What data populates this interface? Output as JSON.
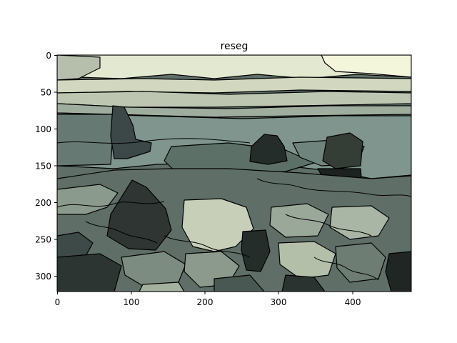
{
  "title": "reseg",
  "axes": {
    "x_ticks": [
      "0",
      "100",
      "200",
      "300",
      "400"
    ],
    "y_ticks": [
      "0",
      "50",
      "100",
      "150",
      "200",
      "250",
      "300"
    ],
    "xlim": [
      0,
      480
    ],
    "ylim": [
      320,
      0
    ]
  },
  "image_description_colors": {
    "sky": "#e9eed6",
    "upper_band": "#cfd6bf",
    "sea": "#7f958d",
    "dark_rock": "#2c3532",
    "light_rock": "#c7cfb9",
    "mid_rock": "#5f6f68"
  }
}
